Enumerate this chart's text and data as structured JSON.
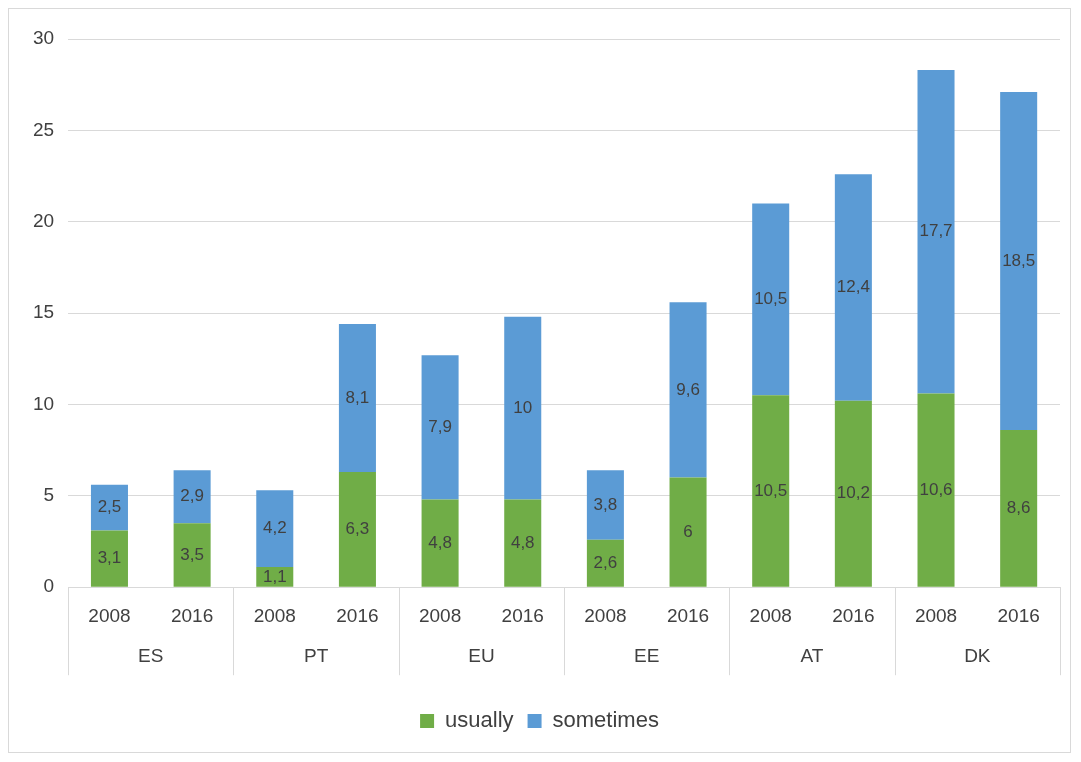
{
  "chart_data": {
    "type": "bar",
    "stacked": true,
    "categories": [
      "2008",
      "2016",
      "2008",
      "2016",
      "2008",
      "2016",
      "2008",
      "2016",
      "2008",
      "2016",
      "2008",
      "2016"
    ],
    "annotations": [
      "ES",
      "PT",
      "EU",
      "EE",
      "AT",
      "DK"
    ],
    "series": [
      {
        "name": "usually",
        "color": "#70ad47",
        "values": [
          3.1,
          3.5,
          1.1,
          6.3,
          4.8,
          4.8,
          2.6,
          6,
          10.5,
          10.2,
          10.6,
          8.6
        ],
        "value_labels": [
          "3,1",
          "3,5",
          "1,1",
          "6,3",
          "4,8",
          "4,8",
          "2,6",
          "6",
          "10,5",
          "10,2",
          "10,6",
          "8,6"
        ]
      },
      {
        "name": "sometimes",
        "color": "#5b9bd5",
        "values": [
          2.5,
          2.9,
          4.2,
          8.1,
          7.9,
          10,
          3.8,
          9.6,
          10.5,
          12.4,
          17.7,
          18.5
        ],
        "value_labels": [
          "2,5",
          "2,9",
          "4,2",
          "8,1",
          "7,9",
          "10",
          "3,8",
          "9,6",
          "10,5",
          "12,4",
          "17,7",
          "18,5"
        ]
      }
    ],
    "ylim": [
      0,
      30
    ],
    "yticks": [
      0,
      5,
      10,
      15,
      20,
      25,
      30
    ],
    "grid": "y",
    "legend": "bottom"
  }
}
